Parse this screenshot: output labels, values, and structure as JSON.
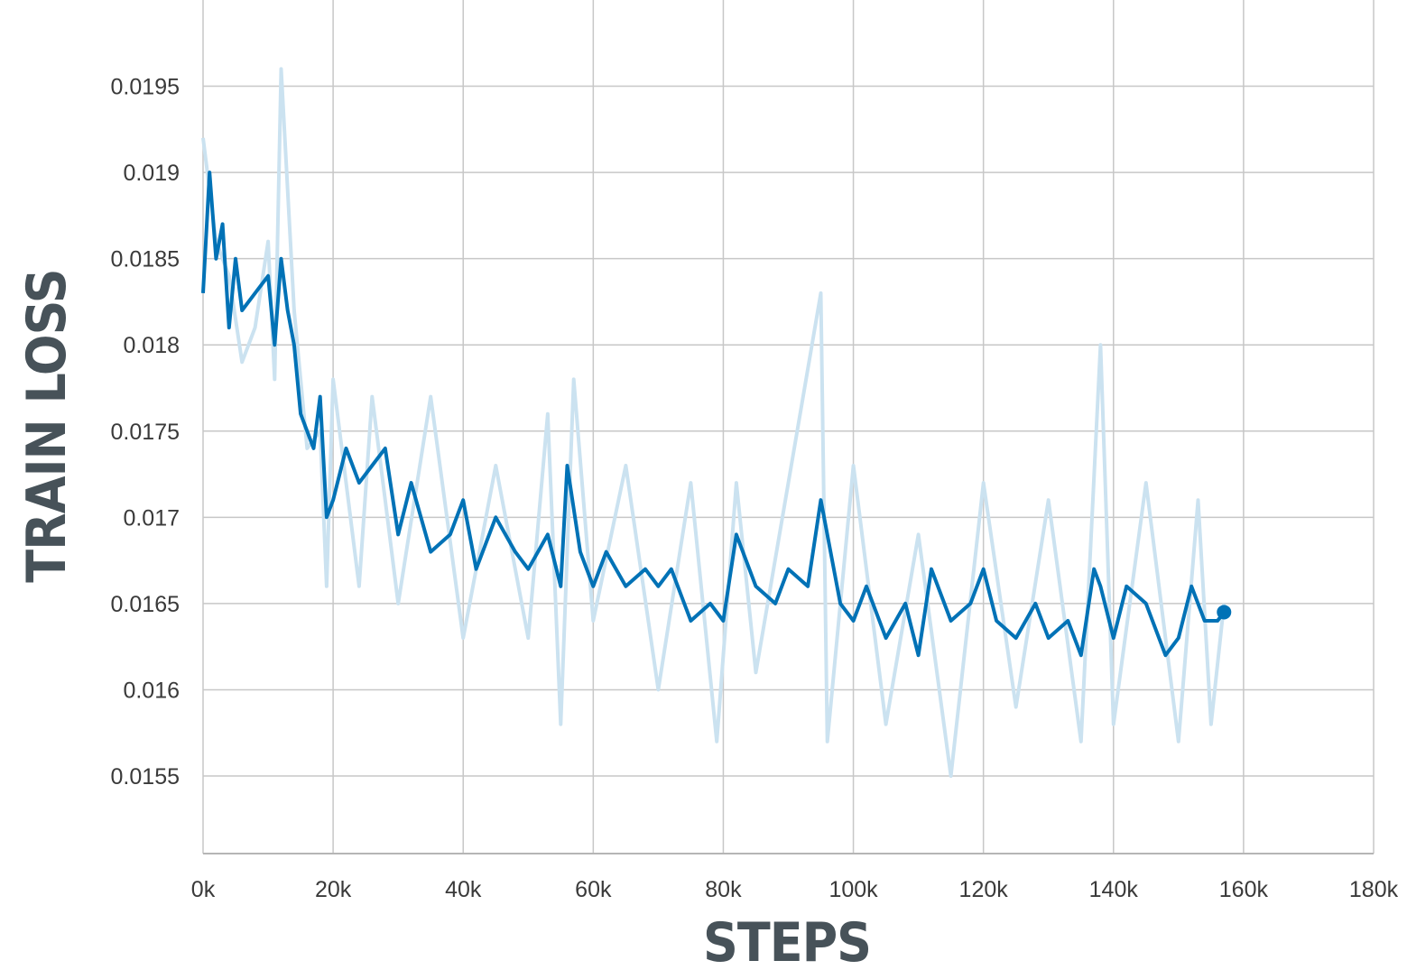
{
  "chart_data": {
    "type": "line",
    "xlabel": "STEPS",
    "ylabel": "TRAIN LOSS",
    "xlim": [
      0,
      180000
    ],
    "ylim": [
      0.01505,
      0.02
    ],
    "grid": true,
    "x_ticks": [
      {
        "value": 0,
        "label": "0k"
      },
      {
        "value": 20000,
        "label": "20k"
      },
      {
        "value": 40000,
        "label": "40k"
      },
      {
        "value": 60000,
        "label": "60k"
      },
      {
        "value": 80000,
        "label": "80k"
      },
      {
        "value": 100000,
        "label": "100k"
      },
      {
        "value": 120000,
        "label": "120k"
      },
      {
        "value": 140000,
        "label": "140k"
      },
      {
        "value": 160000,
        "label": "160k"
      },
      {
        "value": 180000,
        "label": "180k"
      }
    ],
    "y_ticks": [
      {
        "value": 0.0155,
        "label": "0.0155"
      },
      {
        "value": 0.016,
        "label": "0.016"
      },
      {
        "value": 0.0165,
        "label": "0.0165"
      },
      {
        "value": 0.017,
        "label": "0.017"
      },
      {
        "value": 0.0175,
        "label": "0.0175"
      },
      {
        "value": 0.018,
        "label": "0.018"
      },
      {
        "value": 0.0185,
        "label": "0.0185"
      },
      {
        "value": 0.019,
        "label": "0.019"
      },
      {
        "value": 0.0195,
        "label": "0.0195"
      }
    ],
    "series": [
      {
        "role": "raw",
        "color": "#cbe2f0",
        "x": [
          0,
          2000,
          4000,
          6000,
          8000,
          10000,
          11000,
          12000,
          14000,
          16000,
          18000,
          19000,
          20000,
          22000,
          24000,
          26000,
          28000,
          30000,
          35000,
          40000,
          45000,
          50000,
          53000,
          55000,
          57000,
          60000,
          65000,
          70000,
          75000,
          79000,
          82000,
          85000,
          90000,
          95000,
          96000,
          100000,
          105000,
          110000,
          115000,
          120000,
          125000,
          130000,
          135000,
          138000,
          140000,
          145000,
          150000,
          153000,
          155000,
          157000
        ],
        "y": [
          0.0192,
          0.0186,
          0.0184,
          0.0179,
          0.0181,
          0.0186,
          0.0178,
          0.0196,
          0.0182,
          0.0174,
          0.0175,
          0.0166,
          0.0178,
          0.0172,
          0.0166,
          0.0177,
          0.0171,
          0.0165,
          0.0177,
          0.0163,
          0.0173,
          0.0163,
          0.0176,
          0.0158,
          0.0178,
          0.0164,
          0.0173,
          0.016,
          0.0172,
          0.0157,
          0.0172,
          0.0161,
          0.0172,
          0.0183,
          0.0157,
          0.0173,
          0.0158,
          0.0169,
          0.0155,
          0.0172,
          0.0159,
          0.0171,
          0.0157,
          0.018,
          0.0158,
          0.0172,
          0.0157,
          0.0171,
          0.0158,
          0.0165
        ]
      },
      {
        "role": "smoothed",
        "color": "#0172b6",
        "x": [
          0,
          1000,
          2000,
          3000,
          4000,
          5000,
          6000,
          8000,
          10000,
          11000,
          12000,
          13000,
          14000,
          15000,
          16000,
          17000,
          18000,
          19000,
          20000,
          22000,
          24000,
          26000,
          28000,
          30000,
          32000,
          35000,
          38000,
          40000,
          42000,
          45000,
          48000,
          50000,
          53000,
          55000,
          56000,
          58000,
          60000,
          62000,
          65000,
          68000,
          70000,
          72000,
          75000,
          78000,
          80000,
          82000,
          85000,
          88000,
          90000,
          93000,
          95000,
          98000,
          100000,
          102000,
          105000,
          108000,
          110000,
          112000,
          115000,
          118000,
          120000,
          122000,
          125000,
          128000,
          130000,
          133000,
          135000,
          137000,
          138000,
          140000,
          142000,
          145000,
          148000,
          150000,
          152000,
          154000,
          156000,
          157000
        ],
        "y": [
          0.0183,
          0.019,
          0.0185,
          0.0187,
          0.0181,
          0.0185,
          0.0182,
          0.0183,
          0.0184,
          0.018,
          0.0185,
          0.0182,
          0.018,
          0.0176,
          0.0175,
          0.0174,
          0.0177,
          0.017,
          0.0171,
          0.0174,
          0.0172,
          0.0173,
          0.0174,
          0.0169,
          0.0172,
          0.0168,
          0.0169,
          0.0171,
          0.0167,
          0.017,
          0.0168,
          0.0167,
          0.0169,
          0.0166,
          0.0173,
          0.0168,
          0.0166,
          0.0168,
          0.0166,
          0.0167,
          0.0166,
          0.0167,
          0.0164,
          0.0165,
          0.0164,
          0.0169,
          0.0166,
          0.0165,
          0.0167,
          0.0166,
          0.0171,
          0.0165,
          0.0164,
          0.0166,
          0.0163,
          0.0165,
          0.0162,
          0.0167,
          0.0164,
          0.0165,
          0.0167,
          0.0164,
          0.0163,
          0.0165,
          0.0163,
          0.0164,
          0.0162,
          0.0167,
          0.0166,
          0.0163,
          0.0166,
          0.0165,
          0.0162,
          0.0163,
          0.0166,
          0.0164,
          0.0164,
          0.01645
        ]
      }
    ],
    "end_marker": {
      "x": 157000,
      "y": 0.01645
    }
  }
}
